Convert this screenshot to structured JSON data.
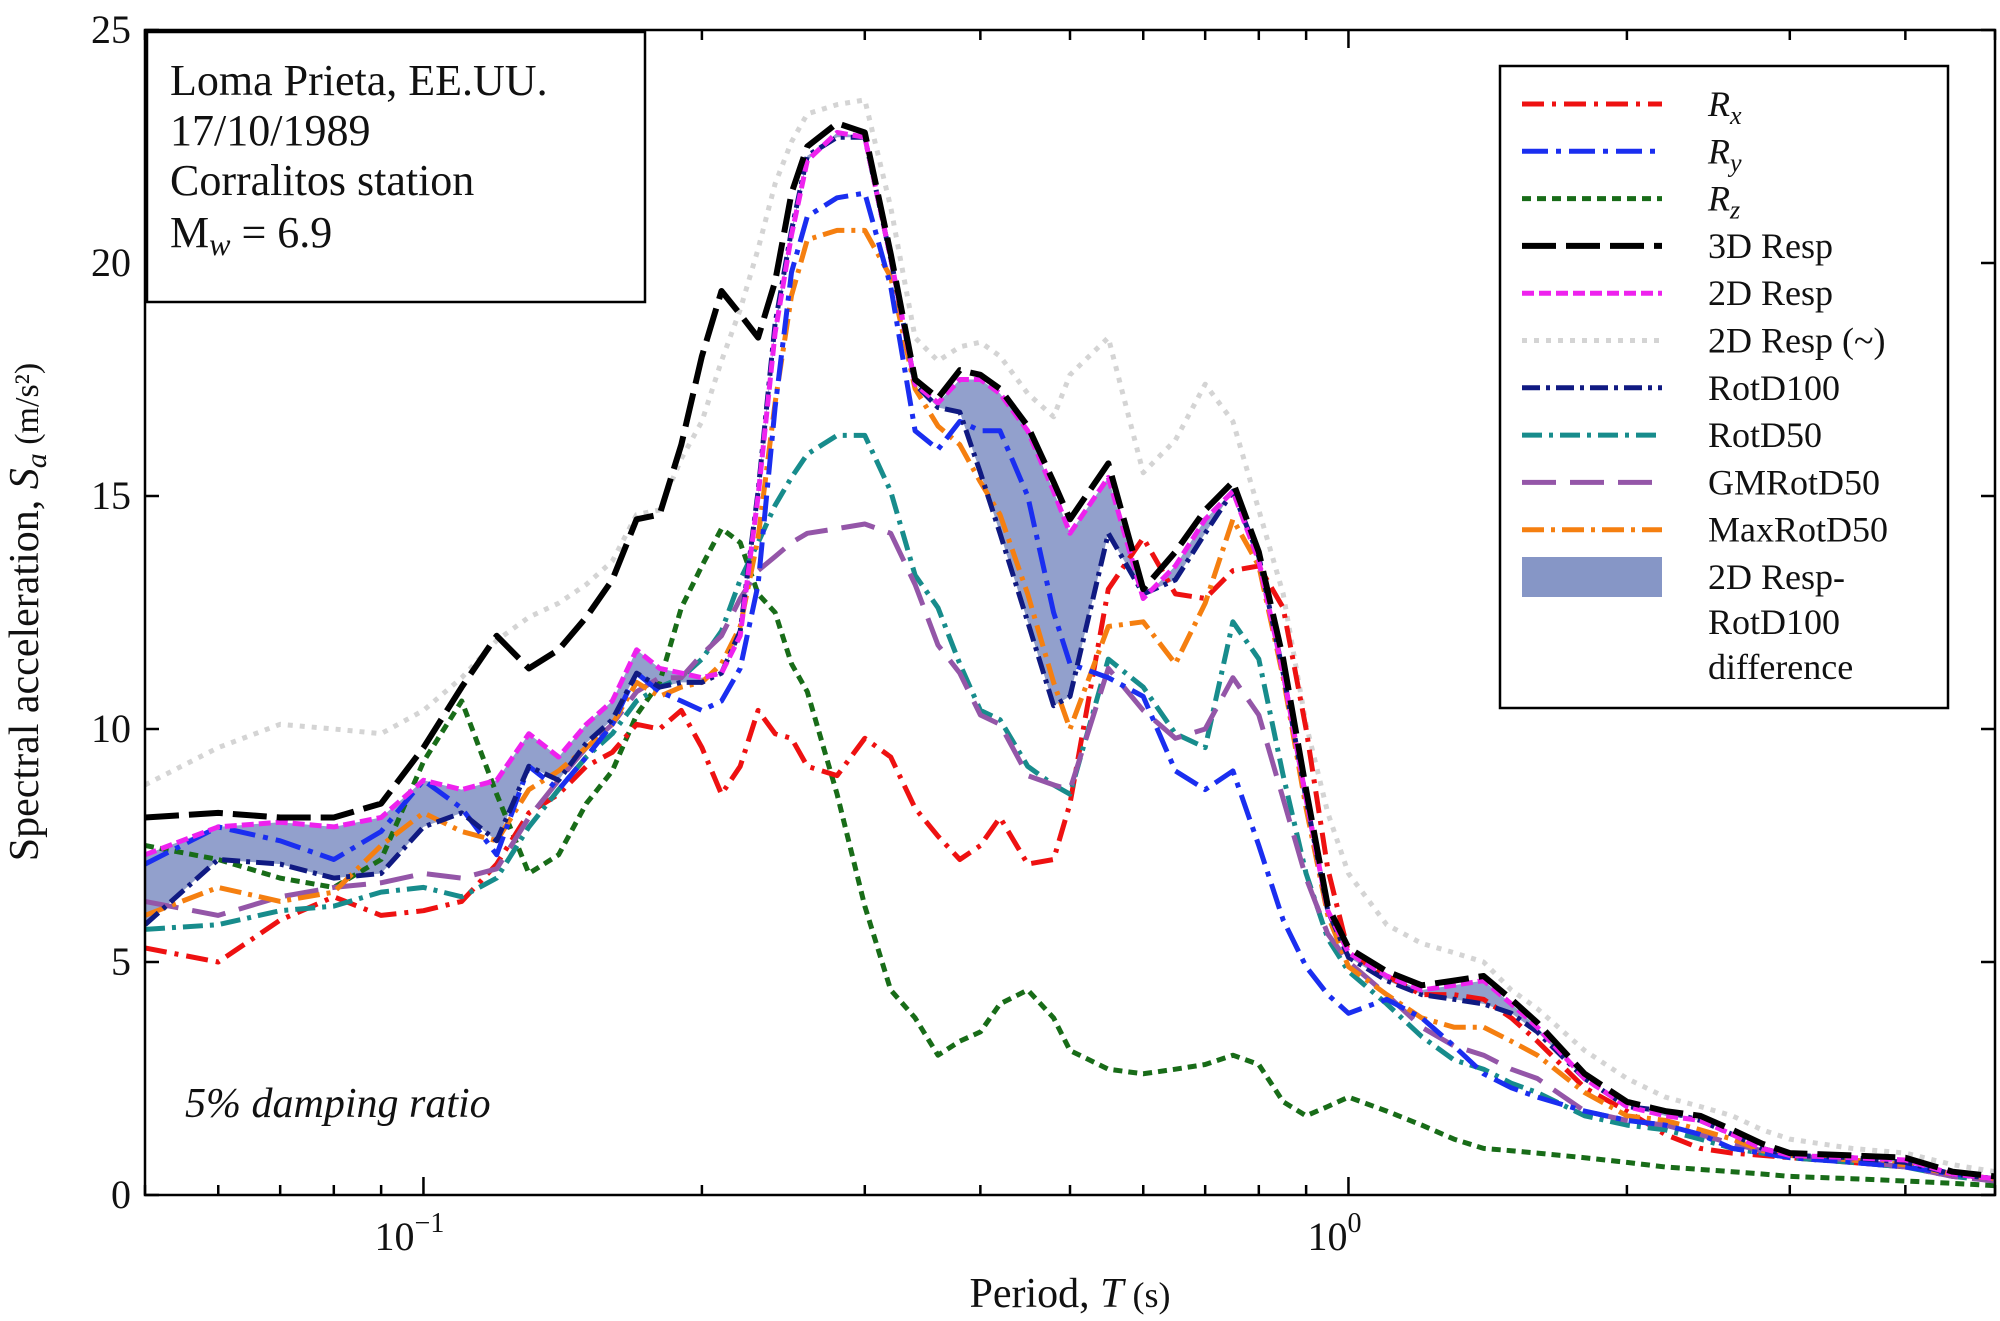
{
  "info_box": {
    "line1": "Loma Prieta, EE.UU.",
    "line2": "17/10/1989",
    "line3": "Corralitos station",
    "mw_symbol": "M",
    "mw_sub": "w",
    "mw_value": " = 6.9"
  },
  "annotation": "5% damping ratio",
  "axes": {
    "xlabel_main": "Period, ",
    "xlabel_sym": "T",
    "xlabel_unit": " (s)",
    "ylabel_main": "Spectral acceleration, ",
    "ylabel_sym": "S",
    "ylabel_sub": "a",
    "ylabel_unit": " (m/s²)"
  },
  "chart_data": {
    "type": "line",
    "x_scale": "log",
    "xlim": [
      0.05,
      5.0
    ],
    "ylim": [
      0,
      25
    ],
    "grid": false,
    "legend_position": "top-right",
    "y_ticks": [
      "0",
      "5",
      "10",
      "15",
      "20",
      "25"
    ],
    "x_ticks": [
      {
        "base": "10",
        "exp": "−1",
        "value": 0.1
      },
      {
        "base": "10",
        "exp": "0",
        "value": 1.0
      }
    ],
    "x": [
      0.05,
      0.06,
      0.07,
      0.08,
      0.09,
      0.1,
      0.11,
      0.12,
      0.13,
      0.14,
      0.15,
      0.16,
      0.17,
      0.18,
      0.19,
      0.2,
      0.21,
      0.22,
      0.23,
      0.24,
      0.25,
      0.26,
      0.28,
      0.3,
      0.32,
      0.34,
      0.36,
      0.38,
      0.4,
      0.42,
      0.45,
      0.48,
      0.5,
      0.55,
      0.6,
      0.65,
      0.7,
      0.75,
      0.8,
      0.85,
      0.9,
      0.95,
      1.0,
      1.1,
      1.2,
      1.3,
      1.4,
      1.5,
      1.6,
      1.8,
      2.0,
      2.2,
      2.4,
      2.6,
      2.8,
      3.0,
      3.5,
      4.0,
      4.5,
      5.0
    ],
    "series": [
      {
        "name": "R",
        "sub": "x",
        "color": "#ee1111",
        "dash": "22,8,4,8",
        "width": 5,
        "values": [
          5.3,
          5.0,
          5.9,
          6.4,
          6.0,
          6.1,
          6.3,
          7.1,
          8.2,
          8.6,
          9.2,
          9.5,
          10.1,
          10.0,
          10.4,
          9.6,
          8.6,
          9.2,
          10.4,
          9.9,
          9.8,
          9.2,
          9.0,
          9.8,
          9.4,
          8.3,
          7.7,
          7.2,
          7.5,
          8.1,
          7.1,
          7.2,
          8.4,
          13.0,
          14.1,
          12.9,
          12.8,
          13.4,
          13.5,
          12.6,
          10.0,
          7.0,
          5.2,
          4.7,
          4.3,
          4.3,
          4.2,
          3.8,
          3.3,
          2.3,
          1.8,
          1.3,
          1.0,
          0.9,
          0.85,
          0.8,
          0.7,
          0.6,
          0.45,
          0.35
        ]
      },
      {
        "name": "R",
        "sub": "y",
        "color": "#1a2ef0",
        "dash": "26,8,5,8",
        "width": 5,
        "values": [
          7.1,
          7.9,
          7.6,
          7.2,
          7.8,
          8.9,
          8.3,
          7.3,
          9.2,
          8.7,
          9.4,
          10.1,
          11.2,
          10.8,
          10.6,
          10.4,
          10.6,
          11.3,
          13.1,
          16.9,
          19.8,
          21.0,
          21.4,
          21.5,
          19.5,
          16.4,
          16.0,
          16.6,
          16.4,
          16.4,
          15.0,
          12.5,
          11.4,
          11.1,
          10.7,
          9.1,
          8.7,
          9.1,
          7.5,
          5.9,
          4.9,
          4.3,
          3.9,
          4.2,
          3.8,
          3.2,
          2.6,
          2.3,
          2.1,
          1.8,
          1.6,
          1.5,
          1.3,
          1.0,
          0.9,
          0.8,
          0.7,
          0.6,
          0.45,
          0.35
        ]
      },
      {
        "name": "R",
        "sub": "z",
        "color": "#186c18",
        "dash": "9,6",
        "width": 5,
        "values": [
          7.5,
          7.2,
          6.8,
          6.6,
          7.2,
          9.3,
          10.6,
          8.6,
          6.9,
          7.3,
          8.4,
          9.1,
          10.3,
          11.0,
          12.6,
          13.5,
          14.3,
          14.0,
          12.9,
          12.5,
          11.4,
          10.8,
          8.6,
          6.2,
          4.4,
          3.8,
          3.0,
          3.3,
          3.5,
          4.1,
          4.4,
          3.8,
          3.1,
          2.7,
          2.6,
          2.7,
          2.8,
          3.0,
          2.8,
          2.0,
          1.7,
          1.9,
          2.1,
          1.8,
          1.5,
          1.2,
          1.0,
          0.95,
          0.9,
          0.8,
          0.7,
          0.6,
          0.55,
          0.5,
          0.45,
          0.4,
          0.35,
          0.3,
          0.25,
          0.2
        ]
      },
      {
        "name": "3D Resp",
        "color": "#000000",
        "dash": "34,10",
        "width": 6,
        "values": [
          8.1,
          8.2,
          8.1,
          8.1,
          8.4,
          9.6,
          10.9,
          12.0,
          11.3,
          11.7,
          12.4,
          13.2,
          14.5,
          14.6,
          16.1,
          18.0,
          19.4,
          18.9,
          18.4,
          19.6,
          21.5,
          22.5,
          23.0,
          22.8,
          20.2,
          17.5,
          17.1,
          17.7,
          17.6,
          17.3,
          16.5,
          15.3,
          14.5,
          15.7,
          13.0,
          13.8,
          14.7,
          15.3,
          13.8,
          11.5,
          8.7,
          6.2,
          5.3,
          4.8,
          4.5,
          4.6,
          4.7,
          4.2,
          3.7,
          2.6,
          2.0,
          1.8,
          1.7,
          1.4,
          1.1,
          0.9,
          0.85,
          0.8,
          0.5,
          0.4
        ]
      },
      {
        "name": "2D Resp",
        "color": "#ee22ee",
        "dash": "12,5",
        "width": 5,
        "values": [
          7.3,
          7.9,
          8.0,
          7.9,
          8.1,
          8.9,
          8.7,
          8.9,
          9.9,
          9.4,
          10.1,
          10.6,
          11.7,
          11.3,
          11.2,
          11.1,
          11.2,
          12.0,
          15.0,
          18.5,
          20.6,
          22.2,
          22.8,
          22.7,
          20.1,
          17.4,
          17.0,
          17.5,
          17.5,
          17.2,
          16.4,
          15.1,
          14.2,
          15.4,
          12.8,
          13.5,
          14.5,
          15.1,
          13.6,
          11.2,
          8.5,
          6.1,
          5.2,
          4.7,
          4.4,
          4.5,
          4.6,
          4.1,
          3.6,
          2.5,
          1.9,
          1.7,
          1.6,
          1.3,
          1.0,
          0.85,
          0.8,
          0.75,
          0.45,
          0.35
        ]
      },
      {
        "name": "2D Resp (~)",
        "color": "#d4d4d4",
        "dash": "5,7",
        "width": 5,
        "values": [
          8.8,
          9.6,
          10.1,
          10.0,
          9.9,
          10.4,
          11.1,
          11.9,
          12.4,
          12.7,
          13.1,
          13.6,
          14.6,
          14.7,
          15.8,
          16.6,
          17.9,
          19.0,
          20.3,
          21.7,
          22.6,
          23.2,
          23.4,
          23.5,
          21.2,
          18.4,
          17.9,
          18.2,
          18.3,
          18.0,
          17.2,
          16.7,
          17.6,
          18.4,
          15.5,
          16.2,
          17.4,
          16.6,
          14.7,
          12.9,
          10.1,
          8.2,
          6.9,
          5.8,
          5.4,
          5.2,
          5.0,
          4.4,
          4.0,
          3.1,
          2.5,
          2.1,
          1.9,
          1.7,
          1.4,
          1.2,
          1.0,
          0.9,
          0.65,
          0.5
        ]
      },
      {
        "name": "RotD100",
        "color": "#101a82",
        "dash": "18,6,4,6",
        "width": 5,
        "values": [
          5.8,
          7.2,
          7.1,
          6.8,
          6.9,
          7.9,
          8.2,
          7.6,
          9.2,
          8.9,
          9.7,
          10.2,
          11.2,
          10.9,
          11.0,
          11.0,
          11.2,
          12.1,
          15.1,
          18.7,
          20.7,
          22.3,
          22.7,
          22.7,
          20.1,
          17.4,
          16.9,
          16.8,
          15.5,
          14.2,
          12.3,
          10.5,
          10.7,
          14.2,
          12.9,
          13.2,
          14.2,
          15.1,
          13.7,
          11.2,
          8.5,
          6.1,
          5.1,
          4.6,
          4.3,
          4.2,
          4.1,
          3.9,
          3.5,
          2.5,
          1.9,
          1.8,
          1.6,
          1.3,
          1.0,
          0.85,
          0.8,
          0.7,
          0.45,
          0.35
        ]
      },
      {
        "name": "RotD50",
        "color": "#178c8c",
        "dash": "20,7,4,7",
        "width": 5,
        "values": [
          5.7,
          5.8,
          6.1,
          6.2,
          6.5,
          6.6,
          6.4,
          6.8,
          7.9,
          8.7,
          9.4,
          9.9,
          10.6,
          10.9,
          11.1,
          11.5,
          12.1,
          13.2,
          14.0,
          14.8,
          15.4,
          15.9,
          16.3,
          16.3,
          15.1,
          13.3,
          12.6,
          11.4,
          10.4,
          10.2,
          9.2,
          8.8,
          8.6,
          11.5,
          10.9,
          9.9,
          9.6,
          12.3,
          11.5,
          9.0,
          6.9,
          5.5,
          4.8,
          4.1,
          3.4,
          2.9,
          2.7,
          2.4,
          2.2,
          1.7,
          1.5,
          1.4,
          1.2,
          1.0,
          0.9,
          0.8,
          0.7,
          0.6,
          0.4,
          0.3
        ]
      },
      {
        "name": "GMRotD50",
        "color": "#9456a8",
        "dash": "34,14",
        "width": 5,
        "values": [
          6.3,
          6.0,
          6.4,
          6.6,
          6.7,
          6.9,
          6.8,
          7.0,
          8.1,
          8.9,
          9.6,
          10.1,
          10.8,
          11.1,
          11.1,
          11.6,
          12.0,
          12.8,
          13.4,
          13.7,
          14.0,
          14.2,
          14.3,
          14.4,
          14.2,
          13.1,
          11.8,
          11.2,
          10.3,
          10.1,
          9.0,
          8.8,
          8.7,
          11.3,
          10.4,
          9.8,
          10.0,
          11.1,
          10.3,
          8.5,
          6.8,
          5.6,
          5.0,
          4.3,
          3.6,
          3.2,
          3.0,
          2.7,
          2.5,
          1.8,
          1.6,
          1.5,
          1.3,
          1.1,
          0.95,
          0.85,
          0.75,
          0.6,
          0.4,
          0.3
        ]
      },
      {
        "name": "MaxRotD50",
        "color": "#f57f10",
        "dash": "22,7,4,7",
        "width": 5,
        "values": [
          6.0,
          6.6,
          6.3,
          6.5,
          7.5,
          8.2,
          7.8,
          7.6,
          8.7,
          9.1,
          9.6,
          10.1,
          11.0,
          10.7,
          10.9,
          11.0,
          11.4,
          12.2,
          14.1,
          17.0,
          19.3,
          20.5,
          20.7,
          20.7,
          19.7,
          17.3,
          16.5,
          16.1,
          15.3,
          14.6,
          12.9,
          11.0,
          10.0,
          12.2,
          12.3,
          11.4,
          12.7,
          14.5,
          13.5,
          11.1,
          8.3,
          6.0,
          4.9,
          4.3,
          3.8,
          3.6,
          3.6,
          3.3,
          3.0,
          2.2,
          1.7,
          1.6,
          1.4,
          1.2,
          0.95,
          0.85,
          0.75,
          0.65,
          0.45,
          0.35
        ]
      }
    ],
    "difference_band": {
      "name_line1": "2D Resp-",
      "name_line2": "RotD100",
      "name_line3": "difference",
      "color": "#8696c6",
      "upper": "2D Resp",
      "lower": "RotD100"
    }
  }
}
